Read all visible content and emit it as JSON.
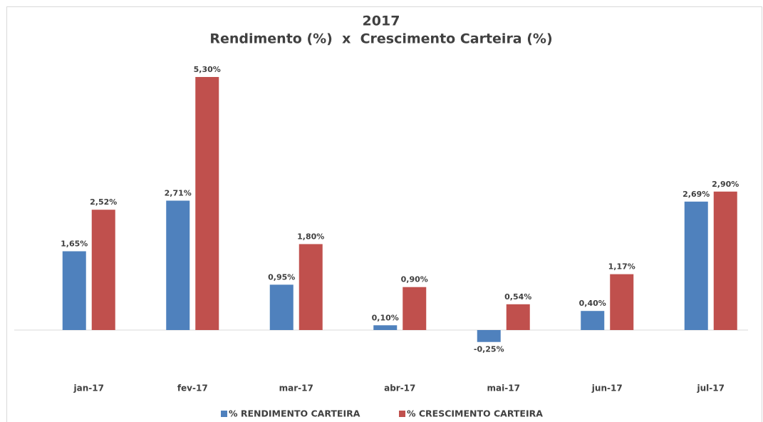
{
  "chart_data": {
    "type": "bar",
    "title": "2017",
    "subtitle": "Rendimento (%)  x  Crescimento Carteira (%)",
    "categories": [
      "jan-17",
      "fev-17",
      "mar-17",
      "abr-17",
      "mai-17",
      "jun-17",
      "jul-17"
    ],
    "series": [
      {
        "name": "% RENDIMENTO CARTEIRA",
        "color": "#4f81bd",
        "values": [
          1.65,
          2.71,
          0.95,
          0.1,
          -0.25,
          0.4,
          2.69
        ],
        "value_labels": [
          "1,65%",
          "2,71%",
          "0,95%",
          "0,10%",
          "-0,25%",
          "0,40%",
          "2,69%"
        ]
      },
      {
        "name": "% CRESCIMENTO CARTEIRA",
        "color": "#c0504d",
        "values": [
          2.52,
          5.3,
          1.8,
          0.9,
          0.54,
          1.17,
          2.9
        ],
        "value_labels": [
          "2,52%",
          "5,30%",
          "1,80%",
          "0,90%",
          "0,54%",
          "1,17%",
          "2,90%"
        ]
      }
    ],
    "legend": "bottom"
  }
}
